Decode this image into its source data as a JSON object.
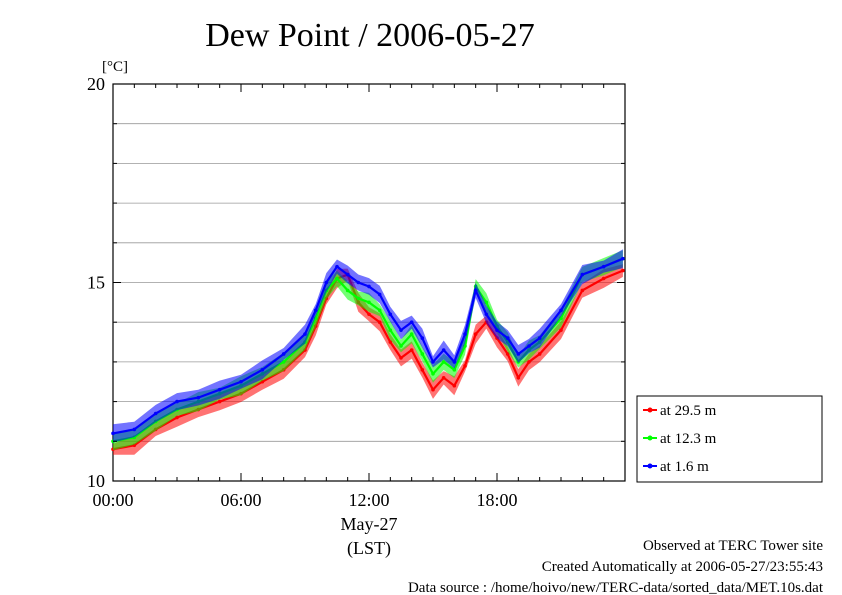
{
  "chart_data": {
    "type": "line",
    "title": "Dew Point / 2006-05-27",
    "y_unit": "[°C]",
    "ylim": [
      10,
      20
    ],
    "y_ticks": [
      10,
      15,
      20
    ],
    "y_gridlines": [
      11,
      12,
      13,
      14,
      15,
      16,
      17,
      18,
      19
    ],
    "xlim_hours": [
      0,
      24
    ],
    "x_ticks": [
      {
        "hour": 0,
        "label": "00:00"
      },
      {
        "hour": 6,
        "label": "06:00"
      },
      {
        "hour": 12,
        "label": "12:00"
      },
      {
        "hour": 18,
        "label": "18:00"
      }
    ],
    "date_label": "May-27",
    "time_zone_label": "(LST)",
    "grid": true,
    "legend_position": "right",
    "x": [
      0,
      1,
      2,
      3,
      4,
      5,
      6,
      7,
      8,
      9,
      9.5,
      10,
      10.5,
      11,
      11.5,
      12,
      12.5,
      13,
      13.5,
      14,
      14.5,
      15,
      15.5,
      16,
      16.5,
      17,
      17.5,
      18,
      18.5,
      19,
      19.5,
      20,
      21,
      22,
      23,
      23.9
    ],
    "series": [
      {
        "name": "at 29.5 m",
        "color": "#ff0000",
        "values": [
          10.8,
          10.9,
          11.3,
          11.6,
          11.8,
          12.0,
          12.2,
          12.5,
          12.8,
          13.3,
          13.9,
          14.6,
          15.1,
          15.2,
          14.5,
          14.2,
          14.0,
          13.5,
          13.1,
          13.3,
          12.8,
          12.3,
          12.6,
          12.4,
          12.9,
          13.7,
          14.0,
          13.6,
          13.2,
          12.6,
          13.0,
          13.2,
          13.8,
          14.8,
          15.1,
          15.3
        ]
      },
      {
        "name": "at 12.3 m",
        "color": "#00ff00",
        "values": [
          11.0,
          11.1,
          11.5,
          11.8,
          12.0,
          12.2,
          12.4,
          12.7,
          13.0,
          13.5,
          14.1,
          14.8,
          15.1,
          14.8,
          14.6,
          14.5,
          14.3,
          13.8,
          13.4,
          13.7,
          13.2,
          12.7,
          13.0,
          12.8,
          13.4,
          14.9,
          14.5,
          13.9,
          13.5,
          13.0,
          13.3,
          13.5,
          14.1,
          15.2,
          15.4,
          15.6
        ]
      },
      {
        "name": "at 1.6 m",
        "color": "#0000ff",
        "values": [
          11.2,
          11.3,
          11.7,
          12.0,
          12.1,
          12.3,
          12.5,
          12.8,
          13.2,
          13.7,
          14.3,
          15.0,
          15.4,
          15.2,
          15.0,
          14.9,
          14.7,
          14.2,
          13.8,
          14.0,
          13.6,
          13.0,
          13.3,
          13.0,
          13.7,
          14.8,
          14.2,
          13.8,
          13.6,
          13.2,
          13.4,
          13.6,
          14.3,
          15.2,
          15.4,
          15.6
        ]
      }
    ]
  },
  "footer": {
    "line1": "Observed at TERC Tower site",
    "line2": "Created Automatically at 2006-05-27/23:55:43",
    "line3": "Data source : /home/hoivo/new/TERC-data/sorted_data/MET.10s.dat"
  }
}
